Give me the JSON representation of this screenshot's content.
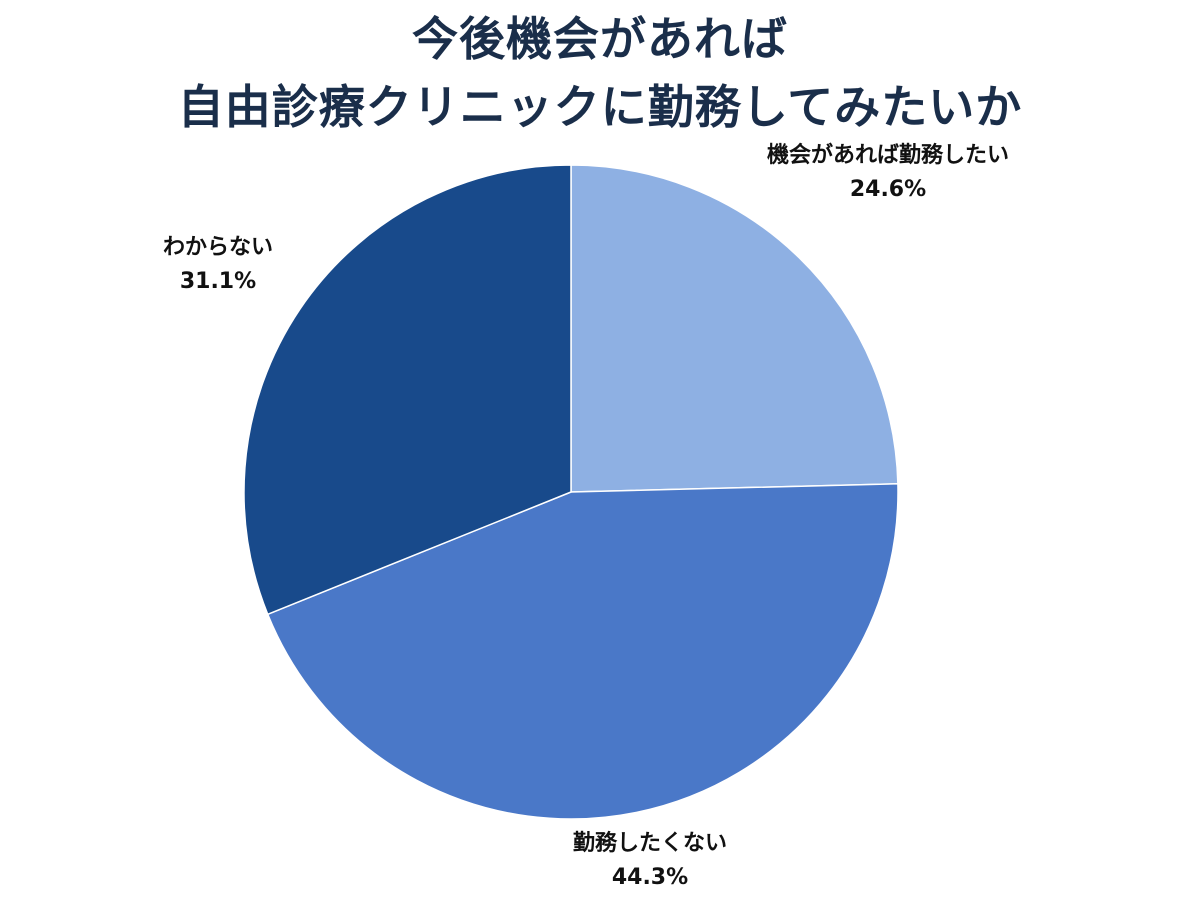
{
  "title_lines": [
    "今後機会があれば",
    "自由診療クリニックに勤務してみたいか"
  ],
  "chart_data": {
    "type": "pie",
    "title": "今後機会があれば自由診療クリニックに勤務してみたいか",
    "start_angle_deg": 0,
    "direction": "clockwise",
    "slices": [
      {
        "label": "機会があれば勤務したい",
        "value": 24.6,
        "value_label": "24.6%",
        "color": "#8eb0e3"
      },
      {
        "label": "勤務したくない",
        "value": 44.3,
        "value_label": "44.3%",
        "color": "#4a78c8"
      },
      {
        "label": "わからない",
        "value": 31.1,
        "value_label": "31.1%",
        "color": "#184a8b"
      }
    ]
  }
}
